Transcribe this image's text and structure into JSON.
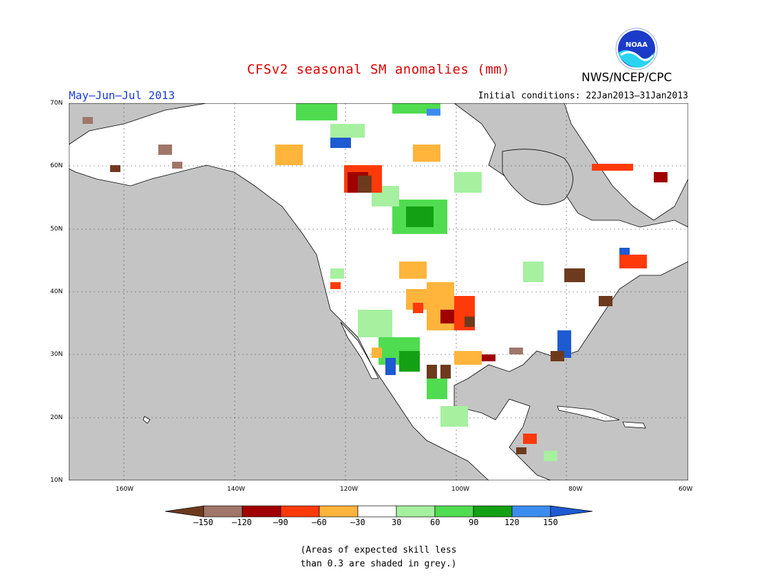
{
  "title": "CFSv2 seasonal SM anomalies (mm)",
  "agency": "NWS/NCEP/CPC",
  "logo_text": "NOAA",
  "period": "May–Jun–Jul 2013",
  "initial_conditions": "Initial conditions: 22Jan2013–31Jan2013",
  "map": {
    "lon_range": [
      -172,
      -60
    ],
    "lat_range": [
      10,
      70
    ],
    "lat_labels": [
      "70N",
      "60N",
      "50N",
      "40N",
      "30N",
      "20N",
      "10N"
    ],
    "lon_labels": [
      "160W",
      "140W",
      "120W",
      "100W",
      "80W",
      "60W"
    ],
    "ocean_color": "#c4c4c4",
    "land_color": "#ffffff"
  },
  "colorbar": {
    "ticks": [
      "–150",
      "–120",
      "–90",
      "–60",
      "–30",
      "30",
      "60",
      "90",
      "120",
      "150"
    ],
    "colors": [
      "#6e3a1e",
      "#a0766a",
      "#a00000",
      "#ff3a0a",
      "#ffb43c",
      "#ffffff",
      "#a6f0a0",
      "#50dc50",
      "#14a014",
      "#3c8cf0",
      "#1e5ad2"
    ]
  },
  "note": [
    "(Areas of expected skill less",
    "than 0.3 are shaded in grey.)"
  ]
}
